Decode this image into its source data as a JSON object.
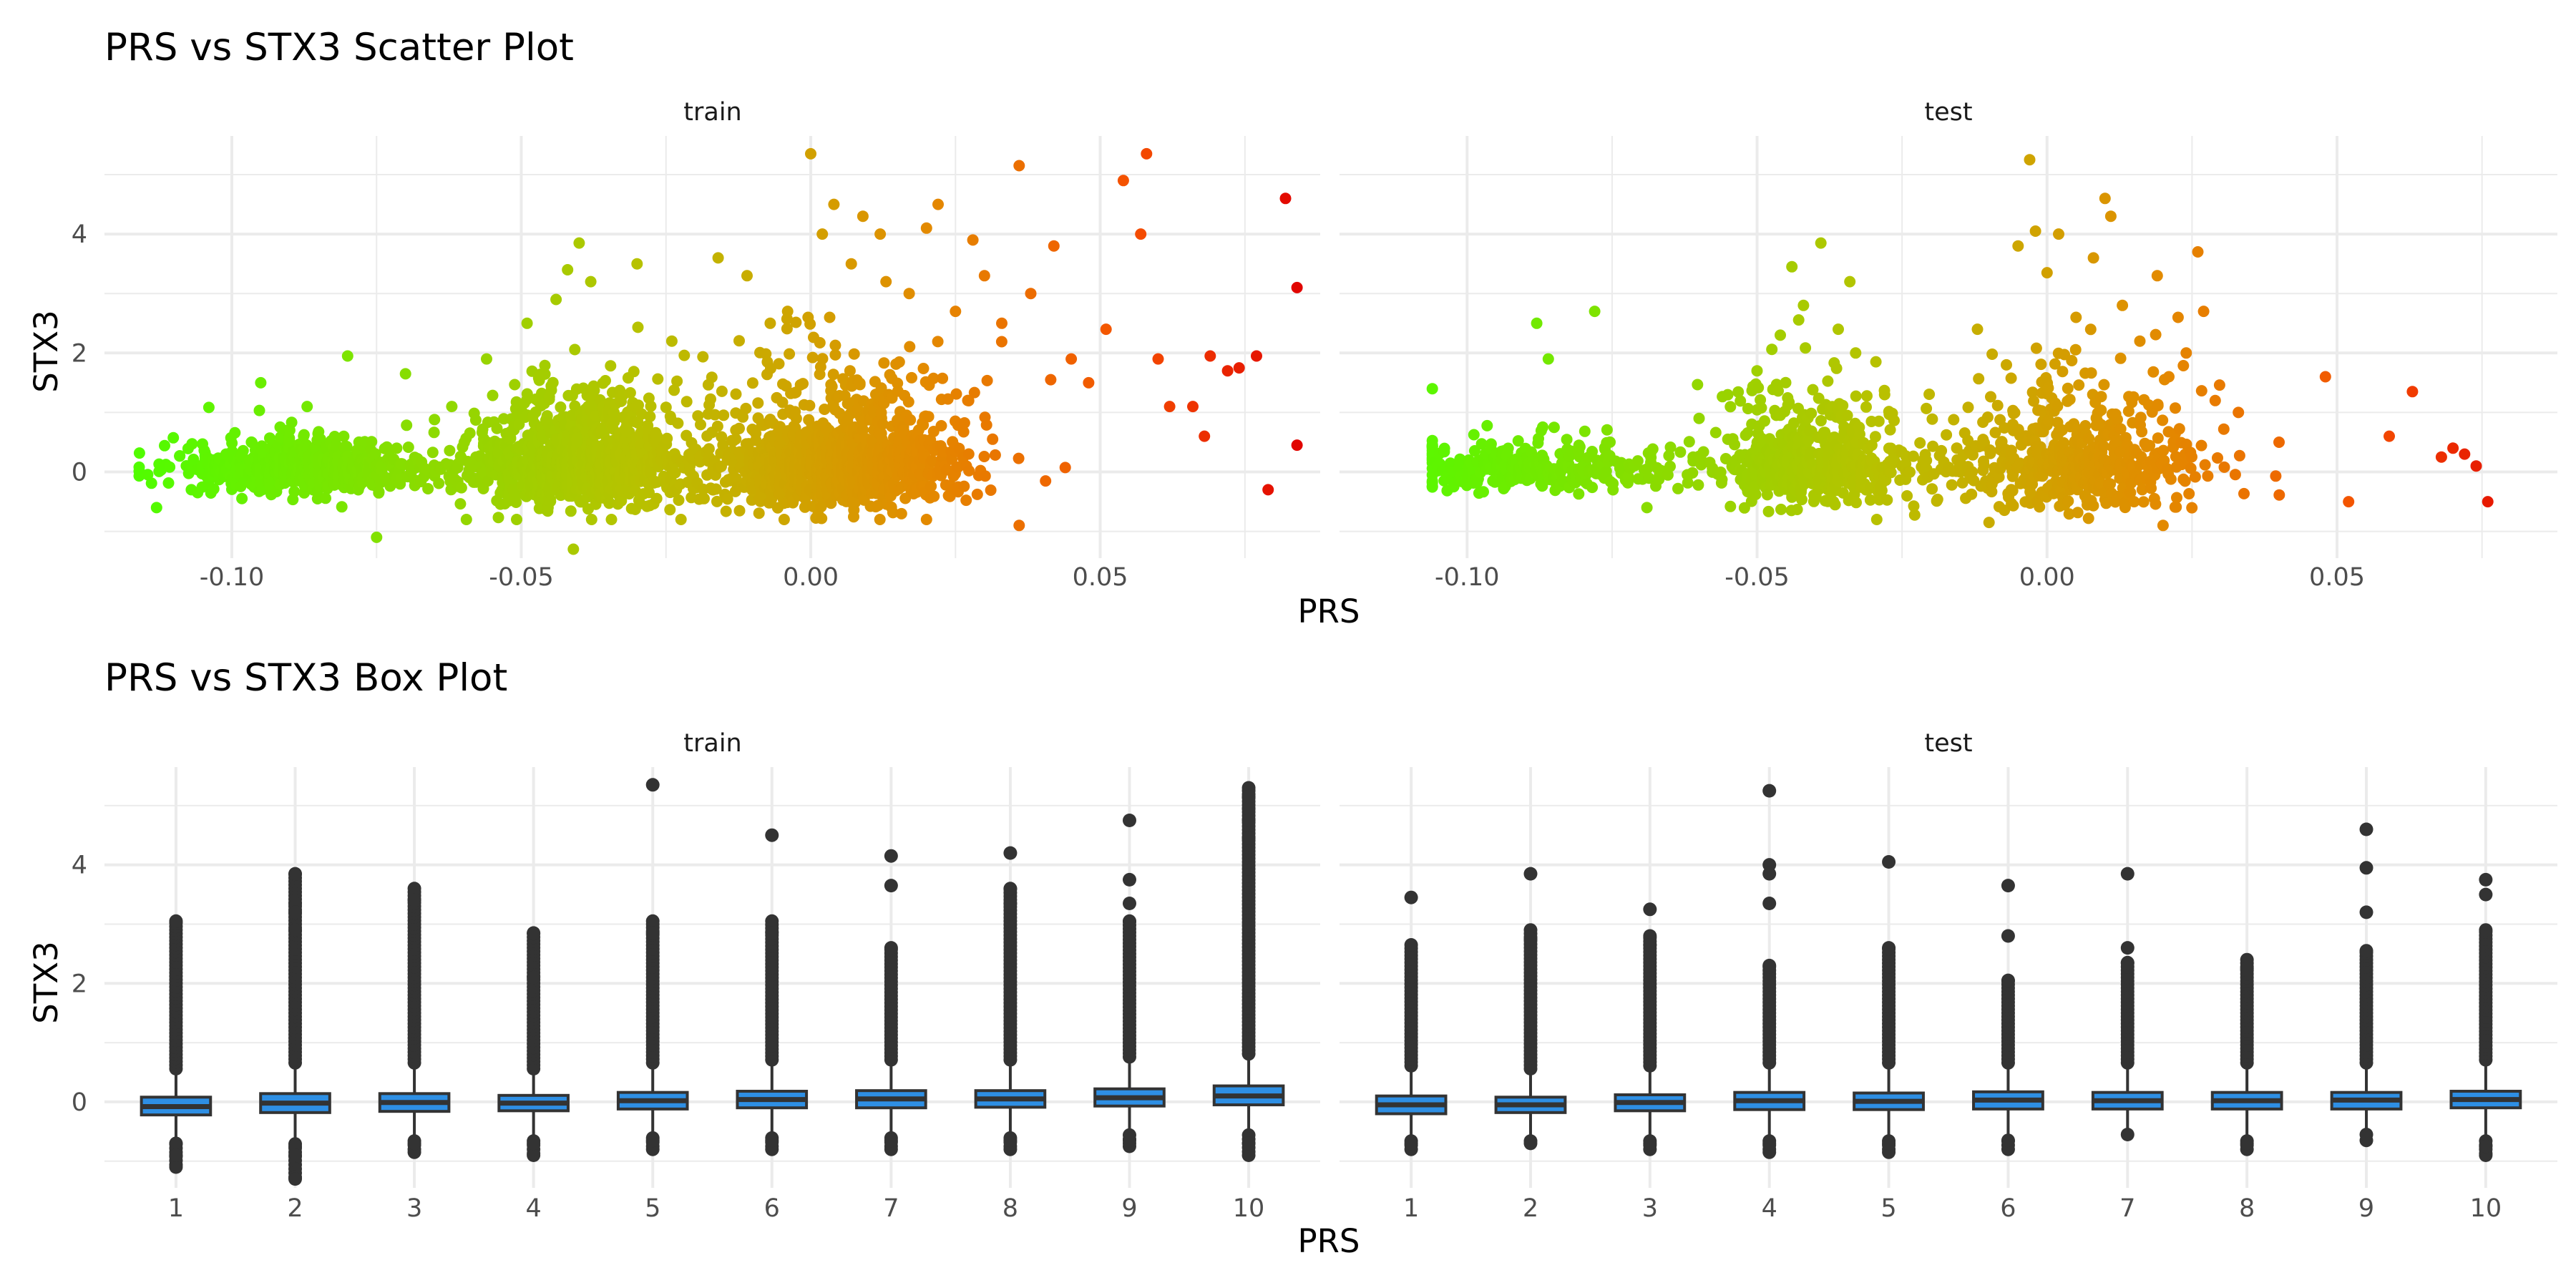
{
  "chart_data": [
    {
      "type": "scatter",
      "title": "PRS vs STX3 Scatter Plot",
      "xlabel": "PRS",
      "ylabel": "STX3",
      "xlim": [
        -0.122,
        0.088
      ],
      "ylim": [
        -1.45,
        5.65
      ],
      "x_ticks": [
        -0.1,
        -0.05,
        0.0,
        0.05
      ],
      "x_tick_labels": [
        "-0.10",
        "-0.05",
        "0.00",
        "0.05"
      ],
      "y_ticks": [
        0,
        2,
        4
      ],
      "y_tick_labels": [
        "0",
        "2",
        "4"
      ],
      "grid": true,
      "legend": "none",
      "color_encoding": "point colour follows PRS: green at low PRS, yellow near -0.03, orange near 0.02, red at high PRS",
      "colors": {
        "low": "#4cff00",
        "mid_low": "#b7c200",
        "mid_high": "#e38a00",
        "high": "#e00000"
      },
      "facets": [
        {
          "strip": "train",
          "n_points_approx": 3000,
          "outliers": [
            {
              "x": -0.116,
              "y": 0.08
            },
            {
              "x": -0.113,
              "y": -0.6
            },
            {
              "x": -0.107,
              "y": -0.3
            },
            {
              "x": -0.101,
              "y": 0.3
            },
            {
              "x": -0.095,
              "y": 1.5
            },
            {
              "x": -0.09,
              "y": 0.7
            },
            {
              "x": -0.087,
              "y": 1.1
            },
            {
              "x": -0.08,
              "y": 1.95
            },
            {
              "x": -0.075,
              "y": -1.1
            },
            {
              "x": -0.07,
              "y": 1.65
            },
            {
              "x": -0.062,
              "y": 1.1
            },
            {
              "x": -0.056,
              "y": 1.9
            },
            {
              "x": -0.049,
              "y": 2.5
            },
            {
              "x": -0.044,
              "y": 2.9
            },
            {
              "x": -0.042,
              "y": 3.4
            },
            {
              "x": -0.04,
              "y": 3.85
            },
            {
              "x": -0.038,
              "y": 3.2
            },
            {
              "x": -0.041,
              "y": -1.3
            },
            {
              "x": -0.03,
              "y": 3.5
            },
            {
              "x": -0.024,
              "y": 2.2
            },
            {
              "x": -0.016,
              "y": 3.6
            },
            {
              "x": -0.011,
              "y": 3.3
            },
            {
              "x": -0.007,
              "y": 2.5
            },
            {
              "x": -0.004,
              "y": 2.7
            },
            {
              "x": 0.0,
              "y": 5.35
            },
            {
              "x": 0.002,
              "y": 4.0
            },
            {
              "x": 0.004,
              "y": 4.5
            },
            {
              "x": 0.007,
              "y": 3.5
            },
            {
              "x": 0.009,
              "y": 4.3
            },
            {
              "x": 0.012,
              "y": 4.0
            },
            {
              "x": 0.013,
              "y": 3.2
            },
            {
              "x": 0.017,
              "y": 3.0
            },
            {
              "x": 0.02,
              "y": 4.1
            },
            {
              "x": 0.022,
              "y": 4.5
            },
            {
              "x": 0.025,
              "y": 2.7
            },
            {
              "x": 0.028,
              "y": 3.9
            },
            {
              "x": 0.03,
              "y": 3.3
            },
            {
              "x": 0.033,
              "y": 2.5
            },
            {
              "x": 0.036,
              "y": 5.15
            },
            {
              "x": 0.038,
              "y": 3.0
            },
            {
              "x": 0.042,
              "y": 3.8
            },
            {
              "x": 0.045,
              "y": 1.9
            },
            {
              "x": 0.048,
              "y": 1.5
            },
            {
              "x": 0.051,
              "y": 2.4
            },
            {
              "x": 0.054,
              "y": 4.9
            },
            {
              "x": 0.057,
              "y": 4.0
            },
            {
              "x": 0.058,
              "y": 5.35
            },
            {
              "x": 0.06,
              "y": 1.9
            },
            {
              "x": 0.062,
              "y": 1.1
            },
            {
              "x": 0.066,
              "y": 1.1
            },
            {
              "x": 0.068,
              "y": 0.6
            },
            {
              "x": 0.069,
              "y": 1.95
            },
            {
              "x": 0.072,
              "y": 1.7
            },
            {
              "x": 0.074,
              "y": 1.75
            },
            {
              "x": 0.077,
              "y": 1.95
            },
            {
              "x": 0.082,
              "y": 4.6
            },
            {
              "x": 0.084,
              "y": 3.1
            },
            {
              "x": 0.084,
              "y": 0.45
            },
            {
              "x": 0.079,
              "y": -0.3
            },
            {
              "x": 0.036,
              "y": -0.9
            },
            {
              "x": 0.02,
              "y": -0.8
            }
          ]
        },
        {
          "strip": "test",
          "n_points_approx": 1400,
          "outliers": [
            {
              "x": -0.106,
              "y": 1.4
            },
            {
              "x": -0.106,
              "y": -0.05
            },
            {
              "x": -0.1,
              "y": -0.1
            },
            {
              "x": -0.097,
              "y": 0.25
            },
            {
              "x": -0.088,
              "y": 2.5
            },
            {
              "x": -0.086,
              "y": 1.9
            },
            {
              "x": -0.085,
              "y": 0.75
            },
            {
              "x": -0.078,
              "y": 2.7
            },
            {
              "x": -0.069,
              "y": -0.6
            },
            {
              "x": -0.06,
              "y": 0.9
            },
            {
              "x": -0.05,
              "y": 1.7
            },
            {
              "x": -0.046,
              "y": 2.3
            },
            {
              "x": -0.044,
              "y": 3.45
            },
            {
              "x": -0.042,
              "y": 2.8
            },
            {
              "x": -0.039,
              "y": 3.85
            },
            {
              "x": -0.036,
              "y": 2.4
            },
            {
              "x": -0.034,
              "y": 3.2
            },
            {
              "x": -0.033,
              "y": 2.0
            },
            {
              "x": -0.028,
              "y": 1.3
            },
            {
              "x": -0.012,
              "y": 2.4
            },
            {
              "x": -0.007,
              "y": 1.8
            },
            {
              "x": -0.005,
              "y": 3.8
            },
            {
              "x": -0.003,
              "y": 5.25
            },
            {
              "x": -0.002,
              "y": 4.05
            },
            {
              "x": 0.0,
              "y": 3.35
            },
            {
              "x": 0.002,
              "y": 4.0
            },
            {
              "x": 0.005,
              "y": 2.6
            },
            {
              "x": 0.008,
              "y": 3.6
            },
            {
              "x": 0.01,
              "y": 4.6
            },
            {
              "x": 0.011,
              "y": 4.3
            },
            {
              "x": 0.013,
              "y": 2.8
            },
            {
              "x": 0.016,
              "y": 2.2
            },
            {
              "x": 0.019,
              "y": 3.3
            },
            {
              "x": 0.021,
              "y": 1.6
            },
            {
              "x": 0.024,
              "y": 2.0
            },
            {
              "x": 0.026,
              "y": 3.7
            },
            {
              "x": 0.027,
              "y": 2.7
            },
            {
              "x": 0.029,
              "y": 1.2
            },
            {
              "x": 0.033,
              "y": 1.0
            },
            {
              "x": 0.04,
              "y": 0.5
            },
            {
              "x": 0.048,
              "y": 1.6
            },
            {
              "x": 0.052,
              "y": -0.5
            },
            {
              "x": 0.059,
              "y": 0.6
            },
            {
              "x": 0.063,
              "y": 1.35
            },
            {
              "x": 0.068,
              "y": 0.25
            },
            {
              "x": 0.07,
              "y": 0.4
            },
            {
              "x": 0.072,
              "y": 0.3
            },
            {
              "x": 0.074,
              "y": 0.1
            },
            {
              "x": 0.076,
              "y": -0.5
            },
            {
              "x": 0.02,
              "y": -0.9
            },
            {
              "x": -0.01,
              "y": -0.85
            }
          ]
        }
      ]
    },
    {
      "type": "box",
      "title": "PRS vs STX3 Box Plot",
      "xlabel": "PRS",
      "ylabel": "STX3",
      "categories": [
        "1",
        "2",
        "3",
        "4",
        "5",
        "6",
        "7",
        "8",
        "9",
        "10"
      ],
      "ylim": [
        -1.45,
        5.65
      ],
      "y_ticks": [
        0,
        2,
        4
      ],
      "y_tick_labels": [
        "0",
        "2",
        "4"
      ],
      "grid": true,
      "legend": "none",
      "colors": {
        "box_fill": "#2e8fe4",
        "box_line": "#333333",
        "outlier": "#333333"
      },
      "facets": [
        {
          "strip": "train",
          "boxes": [
            {
              "q1": -0.22,
              "median": -0.08,
              "q3": 0.08,
              "whisker_low": -0.65,
              "whisker_high": 0.5,
              "outlier_max": 3.05,
              "outlier_min": -1.1,
              "extra_high": [],
              "extra_low": [
                -0.7,
                -0.9
              ]
            },
            {
              "q1": -0.18,
              "median": -0.02,
              "q3": 0.14,
              "whisker_low": -0.65,
              "whisker_high": 0.6,
              "outlier_max": 3.85,
              "outlier_min": -1.3,
              "extra_high": [
                3.35,
                3.2,
                2.9
              ],
              "extra_low": [
                -0.75,
                -0.9
              ]
            },
            {
              "q1": -0.16,
              "median": -0.01,
              "q3": 0.14,
              "whisker_low": -0.6,
              "whisker_high": 0.6,
              "outlier_max": 3.6,
              "outlier_min": -0.85,
              "extra_high": [
                3.4
              ],
              "extra_low": [
                -0.7
              ]
            },
            {
              "q1": -0.15,
              "median": -0.02,
              "q3": 0.11,
              "whisker_low": -0.6,
              "whisker_high": 0.5,
              "outlier_max": 2.85,
              "outlier_min": -0.9,
              "extra_high": [
                2.1
              ],
              "extra_low": [
                -0.7
              ]
            },
            {
              "q1": -0.12,
              "median": 0.02,
              "q3": 0.16,
              "whisker_low": -0.55,
              "whisker_high": 0.6,
              "outlier_max": 3.05,
              "outlier_min": -0.8,
              "extra_high": [
                5.35,
                2.85
              ],
              "extra_low": [
                -0.65
              ]
            },
            {
              "q1": -0.1,
              "median": 0.04,
              "q3": 0.18,
              "whisker_low": -0.55,
              "whisker_high": 0.65,
              "outlier_max": 3.05,
              "outlier_min": -0.8,
              "extra_high": [
                4.5,
                2.85
              ],
              "extra_low": [
                -0.65
              ]
            },
            {
              "q1": -0.1,
              "median": 0.05,
              "q3": 0.19,
              "whisker_low": -0.55,
              "whisker_high": 0.65,
              "outlier_max": 2.6,
              "outlier_min": -0.8,
              "extra_high": [
                4.15,
                3.65
              ],
              "extra_low": [
                -0.65
              ]
            },
            {
              "q1": -0.09,
              "median": 0.05,
              "q3": 0.19,
              "whisker_low": -0.55,
              "whisker_high": 0.65,
              "outlier_max": 3.6,
              "outlier_min": -0.8,
              "extra_high": [
                4.2,
                3.35
              ],
              "extra_low": [
                -0.65
              ]
            },
            {
              "q1": -0.07,
              "median": 0.07,
              "q3": 0.22,
              "whisker_low": -0.5,
              "whisker_high": 0.7,
              "outlier_max": 3.05,
              "outlier_min": -0.75,
              "extra_high": [
                4.75,
                3.75,
                3.35
              ],
              "extra_low": [
                -0.65
              ]
            },
            {
              "q1": -0.05,
              "median": 0.1,
              "q3": 0.27,
              "whisker_low": -0.5,
              "whisker_high": 0.75,
              "outlier_max": 5.3,
              "outlier_min": -0.9,
              "extra_high": [
                5.15,
                4.95,
                4.75,
                4.45
              ],
              "extra_low": [
                -0.7
              ]
            }
          ]
        },
        {
          "strip": "test",
          "boxes": [
            {
              "q1": -0.2,
              "median": -0.05,
              "q3": 0.1,
              "whisker_low": -0.6,
              "whisker_high": 0.55,
              "outlier_max": 2.65,
              "outlier_min": -0.8,
              "extra_high": [
                3.45
              ],
              "extra_low": [
                -0.7
              ]
            },
            {
              "q1": -0.18,
              "median": -0.05,
              "q3": 0.08,
              "whisker_low": -0.6,
              "whisker_high": 0.5,
              "outlier_max": 2.9,
              "outlier_min": -0.7,
              "extra_high": [
                3.85,
                2.75
              ],
              "extra_low": []
            },
            {
              "q1": -0.15,
              "median": -0.01,
              "q3": 0.12,
              "whisker_low": -0.6,
              "whisker_high": 0.55,
              "outlier_max": 2.8,
              "outlier_min": -0.8,
              "extra_high": [
                3.25,
                2.65
              ],
              "extra_low": [
                -0.7
              ]
            },
            {
              "q1": -0.13,
              "median": 0.02,
              "q3": 0.16,
              "whisker_low": -0.6,
              "whisker_high": 0.6,
              "outlier_max": 2.3,
              "outlier_min": -0.85,
              "extra_high": [
                5.25,
                4.0,
                3.85,
                3.35
              ],
              "extra_low": [
                -0.7
              ]
            },
            {
              "q1": -0.13,
              "median": 0.01,
              "q3": 0.15,
              "whisker_low": -0.6,
              "whisker_high": 0.6,
              "outlier_max": 2.6,
              "outlier_min": -0.85,
              "extra_high": [
                4.05
              ],
              "extra_low": [
                -0.7
              ]
            },
            {
              "q1": -0.12,
              "median": 0.03,
              "q3": 0.17,
              "whisker_low": -0.6,
              "whisker_high": 0.6,
              "outlier_max": 2.05,
              "outlier_min": -0.8,
              "extra_high": [
                3.65,
                2.8
              ],
              "extra_low": [
                -0.65
              ]
            },
            {
              "q1": -0.12,
              "median": 0.02,
              "q3": 0.16,
              "whisker_low": -0.6,
              "whisker_high": 0.6,
              "outlier_max": 2.35,
              "outlier_min": -0.55,
              "extra_high": [
                3.85,
                2.6
              ],
              "extra_low": []
            },
            {
              "q1": -0.12,
              "median": 0.02,
              "q3": 0.16,
              "whisker_low": -0.6,
              "whisker_high": 0.6,
              "outlier_max": 2.4,
              "outlier_min": -0.8,
              "extra_high": [
                2.25
              ],
              "extra_low": [
                -0.7
              ]
            },
            {
              "q1": -0.12,
              "median": 0.03,
              "q3": 0.16,
              "whisker_low": -0.6,
              "whisker_high": 0.6,
              "outlier_max": 2.55,
              "outlier_min": -0.65,
              "extra_high": [
                4.6,
                3.95,
                3.2
              ],
              "extra_low": [
                -0.55
              ]
            },
            {
              "q1": -0.1,
              "median": 0.04,
              "q3": 0.18,
              "whisker_low": -0.6,
              "whisker_high": 0.65,
              "outlier_max": 2.9,
              "outlier_min": -0.9,
              "extra_high": [
                3.75,
                3.5
              ],
              "extra_low": [
                -0.75
              ]
            }
          ]
        }
      ]
    }
  ]
}
